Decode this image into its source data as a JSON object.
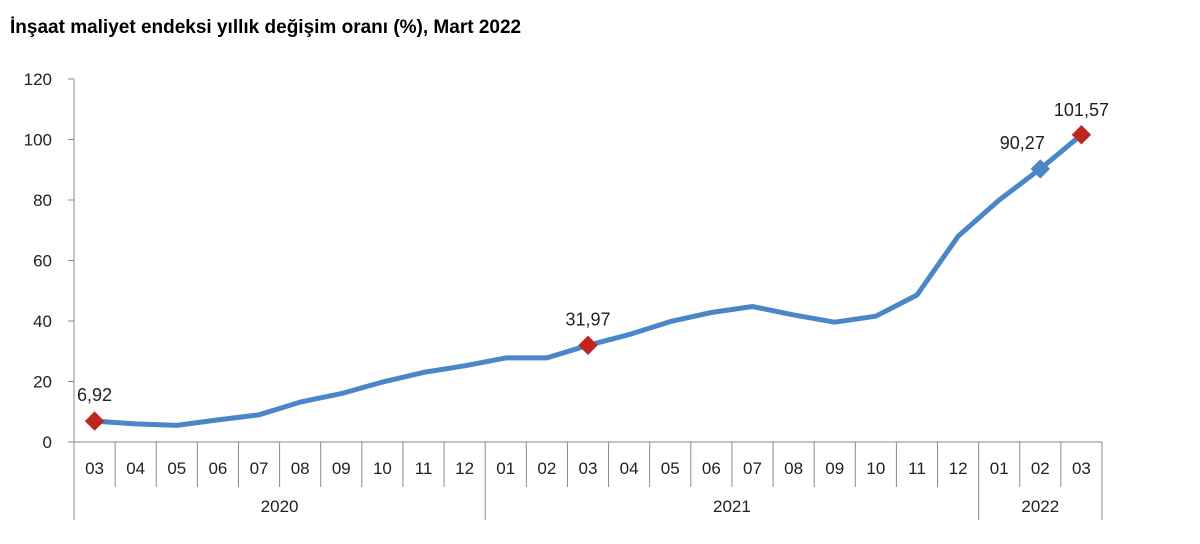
{
  "title": "İnşaat maliyet endeksi yıllık değişim oranı (%), Mart 2022",
  "chart_data": {
    "type": "line",
    "categories": [
      "03",
      "04",
      "05",
      "06",
      "07",
      "08",
      "09",
      "10",
      "11",
      "12",
      "01",
      "02",
      "03",
      "04",
      "05",
      "06",
      "07",
      "08",
      "09",
      "10",
      "11",
      "12",
      "01",
      "02",
      "03"
    ],
    "years": [
      {
        "label": "2020",
        "start": 0,
        "end": 9
      },
      {
        "label": "2021",
        "start": 10,
        "end": 21
      },
      {
        "label": "2022",
        "start": 22,
        "end": 24
      }
    ],
    "series": [
      {
        "values": [
          6.92,
          6.0,
          5.5,
          7.3,
          9.0,
          13.2,
          16.0,
          19.8,
          23.0,
          25.2,
          27.8,
          27.8,
          31.97,
          35.5,
          39.8,
          42.8,
          44.8,
          42.0,
          39.6,
          41.6,
          48.6,
          68.0,
          80.0,
          90.27,
          101.57
        ],
        "color": "#4a86c8"
      }
    ],
    "labeled_points": [
      {
        "index": 0,
        "label": "6,92",
        "marker": "diamond",
        "color": "#c0241f"
      },
      {
        "index": 12,
        "label": "31,97",
        "marker": "diamond",
        "color": "#c0241f"
      },
      {
        "index": 23,
        "label": "90,27",
        "marker": "diamond",
        "color": "#4a86c8"
      },
      {
        "index": 24,
        "label": "101,57",
        "marker": "diamond",
        "color": "#c0241f"
      }
    ],
    "yticks": [
      "0",
      "20",
      "40",
      "60",
      "80",
      "100",
      "120"
    ],
    "ylim": [
      0,
      120
    ],
    "grid": false
  }
}
